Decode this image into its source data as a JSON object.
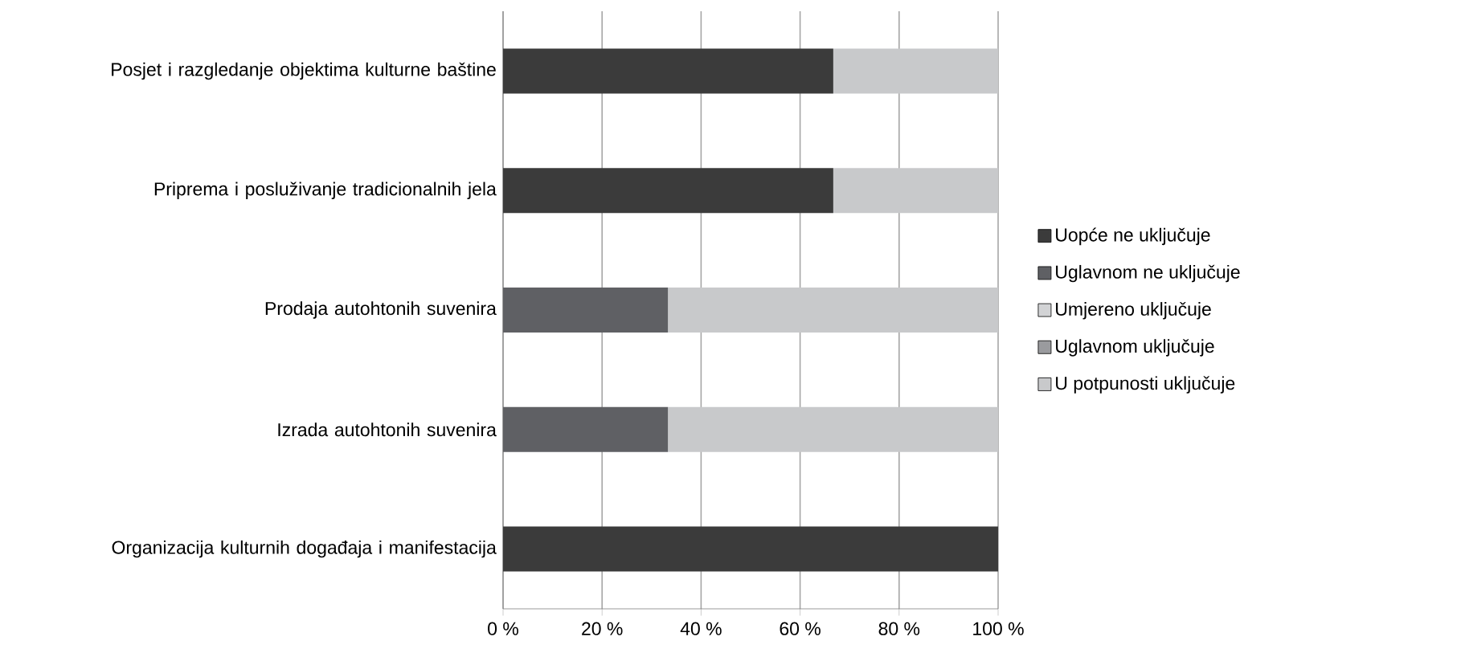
{
  "chart_data": {
    "type": "bar",
    "orientation": "horizontal",
    "stacked": true,
    "categories": [
      "Posjet i razgledanje objektima kulturne baštine",
      "Priprema i posluživanje tradicionalnih jela",
      "Prodaja autohtonih suvenira",
      "Izrada autohtonih suvenira",
      "Organizacija kulturnih događaja i manifestacija"
    ],
    "series": [
      {
        "name": "Uopće ne uključuje",
        "color": "#3b3b3b",
        "values": [
          66.7,
          66.7,
          0,
          0,
          100
        ]
      },
      {
        "name": "Uglavnom ne uključuje",
        "color": "#5f6064",
        "values": [
          0,
          0,
          33.3,
          33.3,
          0
        ]
      },
      {
        "name": "Umjereno uključuje",
        "color": "#d2d3d5",
        "values": [
          0,
          0,
          0,
          0,
          0
        ]
      },
      {
        "name": "Uglavnom uključuje",
        "color": "#9a9b9e",
        "values": [
          0,
          0,
          0,
          0,
          0
        ]
      },
      {
        "name": "U potpunosti uključuje",
        "color": "#c8c9cb",
        "values": [
          33.3,
          33.3,
          66.7,
          66.7,
          0
        ]
      }
    ],
    "xlim": [
      0,
      100
    ],
    "xticks": [
      {
        "value": 0,
        "label": "0 %"
      },
      {
        "value": 20,
        "label": "20 %"
      },
      {
        "value": 40,
        "label": "40 %"
      },
      {
        "value": 60,
        "label": "60 %"
      },
      {
        "value": 80,
        "label": "80 %"
      },
      {
        "value": 100,
        "label": "100 %"
      }
    ],
    "grid": "x",
    "legend": "right"
  }
}
